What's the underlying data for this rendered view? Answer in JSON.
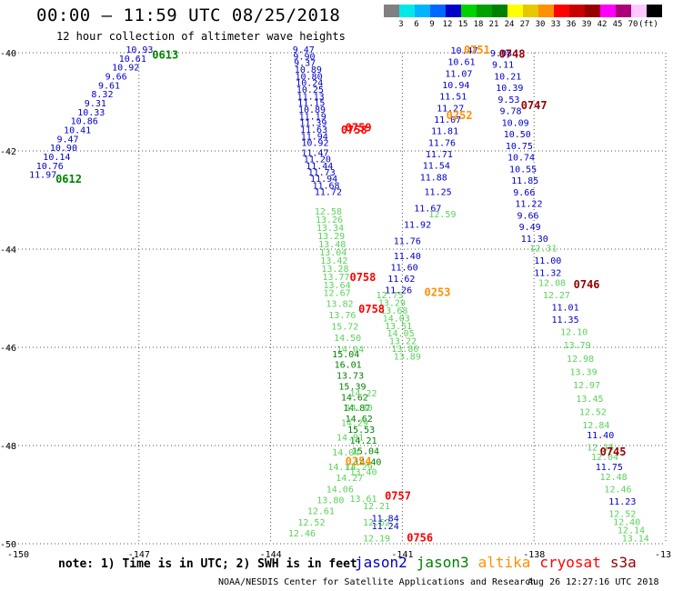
{
  "header": {
    "title": "00:00 – 11:59 UTC 08/25/2018",
    "subtitle": "12 hour collection of altimeter wave heights"
  },
  "legend": {
    "colors": [
      "#808080",
      "#00e8e8",
      "#00b4ff",
      "#0068ff",
      "#0000c8",
      "#00d200",
      "#00a000",
      "#008200",
      "#ffff00",
      "#e6c800",
      "#ff9000",
      "#ff0000",
      "#c80000",
      "#960000",
      "#ff00ff",
      "#aa0078",
      "#ffc8ff",
      "#000000"
    ],
    "labels": [
      "3",
      "6",
      "9",
      "12",
      "15",
      "18",
      "21",
      "24",
      "27",
      "30",
      "33",
      "36",
      "39",
      "42",
      "45",
      "70",
      "(ft)"
    ]
  },
  "axes": {
    "x_ticks": [
      "-150",
      "-147",
      "-144",
      "-141",
      "-138",
      "-13"
    ],
    "y_ticks": [
      "-40",
      "-42",
      "-44",
      "-46",
      "-48",
      "-50"
    ]
  },
  "chart_data": {
    "type": "scatter",
    "x_range": [
      -150,
      -135
    ],
    "y_range": [
      -50,
      -40
    ],
    "time_labels": [
      {
        "text": "0613",
        "lon": -146.7,
        "lat": -40.12,
        "color": "#008200"
      },
      {
        "text": "0612",
        "lon": -148.9,
        "lat": -42.65,
        "color": "#008200"
      },
      {
        "text": "0759",
        "lon": -142.3,
        "lat": -41.6,
        "color": "#ff0000"
      },
      {
        "text": "0758",
        "lon": -142.4,
        "lat": -41.65,
        "color": "#ff0000"
      },
      {
        "text": "0758",
        "lon": -142.2,
        "lat": -44.65,
        "color": "#ff0000"
      },
      {
        "text": "0758",
        "lon": -142.0,
        "lat": -45.3,
        "color": "#ff0000"
      },
      {
        "text": "0757",
        "lon": -141.4,
        "lat": -49.1,
        "color": "#ff0000"
      },
      {
        "text": "0756",
        "lon": -140.9,
        "lat": -49.95,
        "color": "#ff0000"
      },
      {
        "text": "0751",
        "lon": -139.6,
        "lat": -40.02,
        "color": "#ff9000"
      },
      {
        "text": "0252",
        "lon": -140.0,
        "lat": -41.35,
        "color": "#ff9000"
      },
      {
        "text": "0253",
        "lon": -140.5,
        "lat": -44.95,
        "color": "#ff9000"
      },
      {
        "text": "0254",
        "lon": -142.3,
        "lat": -48.4,
        "color": "#ff9000"
      },
      {
        "text": "0748",
        "lon": -138.8,
        "lat": -40.1,
        "color": "#960000"
      },
      {
        "text": "0747",
        "lon": -138.3,
        "lat": -41.15,
        "color": "#960000"
      },
      {
        "text": "0746",
        "lon": -137.1,
        "lat": -44.8,
        "color": "#960000"
      },
      {
        "text": "0745",
        "lon": -136.5,
        "lat": -48.2,
        "color": "#960000"
      }
    ],
    "tracks": [
      {
        "name": "",
        "color": "#0000c8",
        "lon0": -147.3,
        "lat0": -40.0,
        "lon1": -149.5,
        "lat1": -42.55,
        "values": [
          "10.93",
          "10.61",
          "10.92",
          "9.66",
          "9.61",
          "8.32",
          "9.31",
          "10.33",
          "10.86",
          "10.41",
          "9.47",
          "10.90",
          "10.14",
          "10.76",
          "11.97"
        ]
      },
      {
        "name": "",
        "color": "#0000c8",
        "lon0": -143.5,
        "lat0": -40.0,
        "lon1": -143.3,
        "lat1": -41.9,
        "values": [
          "9.47",
          "9.90",
          "9.37",
          "10.89",
          "10.80",
          "10.24",
          "10.25",
          "11.13",
          "11.15",
          "10.89",
          "11.19",
          "11.39",
          "11.63",
          "11.94",
          "10.92"
        ]
      },
      {
        "name": "",
        "color": "#0000c8",
        "lon0": -143.3,
        "lat0": -42.1,
        "lon1": -143.0,
        "lat1": -42.9,
        "values": [
          "11.47",
          "11.20",
          "11.44",
          "11.73",
          "11.94",
          "11.68",
          "11.72"
        ]
      },
      {
        "name": "",
        "color": "#5ad25a",
        "lon0": -143.0,
        "lat0": -43.3,
        "lon1": -142.8,
        "lat1": -44.8,
        "values": [
          "12.58",
          "13.26",
          "13.34",
          "13.29",
          "13.48",
          "13.04",
          "13.42",
          "13.28",
          "13.77",
          "13.64"
        ]
      },
      {
        "name": "",
        "color": "#5ad25a",
        "lon0": -142.8,
        "lat0": -44.95,
        "lon1": -142.5,
        "lat1": -46.1,
        "values": [
          "12.67",
          "13.82",
          "13.76",
          "15.72",
          "14.50",
          "14.04"
        ]
      },
      {
        "name": "",
        "color": "#008200",
        "lon0": -142.6,
        "lat0": -46.2,
        "lon1": -142.1,
        "lat1": -48.4,
        "values": [
          "15.04",
          "16.01",
          "13.73",
          "15.39",
          "14.62",
          "14.87",
          "14.62",
          "15.53",
          "14.21",
          "15.04",
          "14.40"
        ]
      },
      {
        "name": "",
        "color": "#5ad25a",
        "lon0": -142.2,
        "lat0": -47.0,
        "lon1": -142.7,
        "lat1": -48.5,
        "values": [
          "14.22",
          "14.30",
          "14.29",
          "14.91",
          "14.04",
          "14.11"
        ]
      },
      {
        "name": "",
        "color": "#5ad25a",
        "lon0": -142.3,
        "lat0": -48.5,
        "lon1": -143.6,
        "lat1": -49.85,
        "values": [
          "14.29",
          "14.27",
          "14.06",
          "13.80",
          "12.61",
          "12.52",
          "12.46"
        ]
      },
      {
        "name": "",
        "color": "#5ad25a",
        "lon0": -142.2,
        "lat0": -48.6,
        "lon1": -142.2,
        "lat1": -49.15,
        "values": [
          "13.40",
          "13.61"
        ]
      },
      {
        "name": "",
        "color": "#5ad25a",
        "lon0": -141.9,
        "lat0": -49.3,
        "lon1": -141.9,
        "lat1": -49.95,
        "values": [
          "12.21",
          "12.62",
          "12.19"
        ]
      },
      {
        "name": "",
        "color": "#0000c8",
        "lon0": -141.7,
        "lat0": -49.55,
        "lon1": -141.7,
        "lat1": -49.7,
        "values": [
          "11.84",
          "11.24"
        ]
      },
      {
        "name": "",
        "color": "#5ad25a",
        "lon0": -141.6,
        "lat0": -45.0,
        "lon1": -141.2,
        "lat1": -46.25,
        "values": [
          "12.75",
          "13.29",
          "13.68",
          "14.03",
          "13.51",
          "14.05",
          "13.22",
          "13.80",
          "13.89"
        ]
      },
      {
        "name": "",
        "color": "#0000c8",
        "lon0": -141.2,
        "lat0": -44.2,
        "lon1": -141.4,
        "lat1": -44.9,
        "values": [
          "11.40",
          "11.60",
          "11.62",
          "11.26"
        ]
      },
      {
        "name": "",
        "color": "#0000c8",
        "lon0": -139.9,
        "lat0": -40.02,
        "lon1": -140.6,
        "lat1": -42.6,
        "values": [
          "10.47",
          "10.61",
          "11.07",
          "10.94",
          "11.51",
          "11.27",
          "11.07",
          "11.81",
          "11.76",
          "11.71",
          "11.54",
          "11.88"
        ]
      },
      {
        "name": "",
        "color": "#0000c8",
        "lon0": -140.5,
        "lat0": -42.9,
        "lon1": -141.2,
        "lat1": -43.9,
        "values": [
          "11.25",
          "11.67",
          "11.92",
          "11.76"
        ]
      },
      {
        "name": "",
        "color": "#5ad25a",
        "lon0": -140.4,
        "lat0": -43.35,
        "lon1": -140.4,
        "lat1": -43.35,
        "values": [
          "12.59"
        ]
      },
      {
        "name": "",
        "color": "#0000c8",
        "lon0": -139.0,
        "lat0": -40.07,
        "lon1": -138.3,
        "lat1": -43.85,
        "values": [
          "9.08",
          "9.11",
          "10.21",
          "10.39",
          "9.53",
          "9.78",
          "10.09",
          "10.50",
          "10.75",
          "10.74",
          "10.55",
          "11.85",
          "9.66",
          "11.22",
          "9.66",
          "9.49",
          "11.30"
        ]
      },
      {
        "name": "",
        "color": "#5ad25a",
        "lon0": -138.1,
        "lat0": -44.05,
        "lon1": -138.1,
        "lat1": -44.05,
        "values": [
          "12.31"
        ]
      },
      {
        "name": "",
        "color": "#0000c8",
        "lon0": -138.0,
        "lat0": -44.3,
        "lon1": -138.0,
        "lat1": -44.55,
        "values": [
          "11.00",
          "11.32"
        ]
      },
      {
        "name": "",
        "color": "#5ad25a",
        "lon0": -137.9,
        "lat0": -44.75,
        "lon1": -137.8,
        "lat1": -45.0,
        "values": [
          "12.08",
          "12.27"
        ]
      },
      {
        "name": "",
        "color": "#0000c8",
        "lon0": -137.6,
        "lat0": -45.25,
        "lon1": -137.6,
        "lat1": -45.5,
        "values": [
          "11.01",
          "11.35"
        ]
      },
      {
        "name": "",
        "color": "#5ad25a",
        "lon0": -137.4,
        "lat0": -45.75,
        "lon1": -136.9,
        "lat1": -47.65,
        "values": [
          "12.10",
          "13.79",
          "12.98",
          "13.39",
          "12.97",
          "13.45",
          "12.52",
          "12.84"
        ]
      },
      {
        "name": "",
        "color": "#0000c8",
        "lon0": -136.8,
        "lat0": -47.85,
        "lon1": -136.8,
        "lat1": -47.85,
        "values": [
          "11.40"
        ]
      },
      {
        "name": "",
        "color": "#5ad25a",
        "lon0": -136.8,
        "lat0": -48.1,
        "lon1": -136.7,
        "lat1": -48.3,
        "values": [
          "12.15",
          "12.04"
        ]
      },
      {
        "name": "",
        "color": "#0000c8",
        "lon0": -136.6,
        "lat0": -48.5,
        "lon1": -136.6,
        "lat1": -48.5,
        "values": [
          "11.75"
        ]
      },
      {
        "name": "",
        "color": "#5ad25a",
        "lon0": -136.5,
        "lat0": -48.7,
        "lon1": -136.4,
        "lat1": -48.95,
        "values": [
          "12.48",
          "12.46"
        ]
      },
      {
        "name": "",
        "color": "#0000c8",
        "lon0": -136.3,
        "lat0": -49.2,
        "lon1": -136.3,
        "lat1": -49.2,
        "values": [
          "11.23"
        ]
      },
      {
        "name": "",
        "color": "#5ad25a",
        "lon0": -136.3,
        "lat0": -49.45,
        "lon1": -136.0,
        "lat1": -49.95,
        "values": [
          "12.52",
          "12.40",
          "12.14",
          "13.14"
        ]
      }
    ]
  },
  "footer": {
    "note": "note: 1) Time is in UTC; 2) SWH is in feet",
    "satellites": [
      {
        "name": "jason2",
        "color": "#0000c8"
      },
      {
        "name": "jason3",
        "color": "#008200"
      },
      {
        "name": "altika",
        "color": "#ff9000"
      },
      {
        "name": "cryosat",
        "color": "#ff0000"
      },
      {
        "name": "s3a",
        "color": "#960000"
      }
    ],
    "credit": "NOAA/NESDIS Center for Satellite Applications and Research",
    "timestamp": "Aug 26 12:27:16 UTC 2018"
  }
}
